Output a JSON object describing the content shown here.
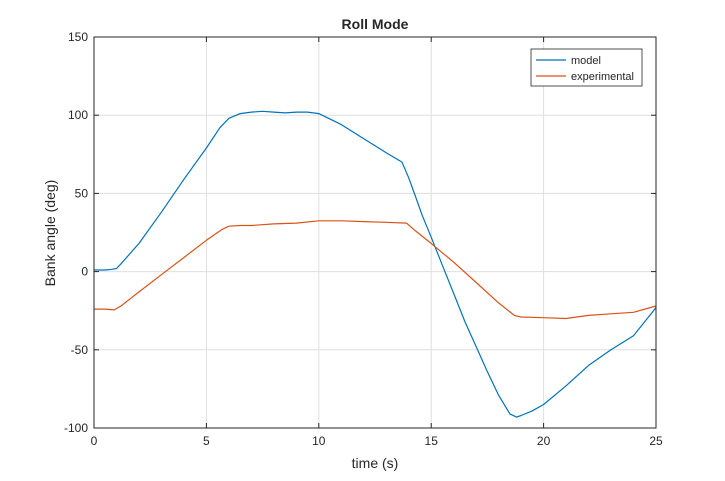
{
  "chart_data": {
    "type": "line",
    "title": "Roll Mode",
    "xlabel": "time (s)",
    "ylabel": "Bank angle (deg)",
    "xlim": [
      0,
      25
    ],
    "ylim": [
      -100,
      150
    ],
    "xticks": [
      0,
      5,
      10,
      15,
      20,
      25
    ],
    "yticks": [
      -100,
      -50,
      0,
      50,
      100,
      150
    ],
    "xtick_labels": [
      "0",
      "5",
      "10",
      "15",
      "20",
      "25"
    ],
    "ytick_labels": [
      "-100",
      "-50",
      "0",
      "50",
      "100",
      "150"
    ],
    "grid": true,
    "legend": "top-right",
    "series": [
      {
        "name": "model",
        "color": "#0072BD",
        "x": [
          0,
          0.5,
          0.8,
          1.0,
          1.2,
          2.0,
          3.0,
          4.0,
          5.0,
          5.6,
          6.0,
          6.5,
          7.0,
          7.5,
          8.0,
          8.5,
          9.0,
          9.5,
          10.0,
          11.0,
          12.0,
          13.0,
          13.7,
          14.0,
          14.3,
          14.6,
          15.0,
          15.5,
          16.0,
          16.5,
          17.0,
          17.5,
          18.0,
          18.5,
          18.8,
          19.0,
          19.5,
          20.0,
          21.0,
          22.0,
          23.0,
          24.0,
          25.0
        ],
        "y": [
          1,
          1,
          1.5,
          2,
          5,
          18,
          38,
          59,
          79,
          92,
          98,
          101,
          102,
          102.5,
          102,
          101.5,
          102,
          102,
          101,
          94,
          85,
          76,
          70,
          60,
          48,
          36,
          22,
          4,
          -14,
          -32,
          -48,
          -64,
          -79,
          -91,
          -93,
          -92,
          -89,
          -85,
          -73,
          -60,
          -50,
          -41,
          -23
        ]
      },
      {
        "name": "experimental",
        "color": "#D95319",
        "x": [
          0,
          0.5,
          0.9,
          1.2,
          2.0,
          3.0,
          4.0,
          5.0,
          5.7,
          6.0,
          6.5,
          7.0,
          8.0,
          9.0,
          10.0,
          11.0,
          12.0,
          13.0,
          13.9,
          14.3,
          15.0,
          15.5,
          16.0,
          17.0,
          18.0,
          18.7,
          19.0,
          20.0,
          21.0,
          22.0,
          23.0,
          24.0,
          25.0
        ],
        "y": [
          -24,
          -24,
          -24.5,
          -22,
          -13,
          -2,
          9,
          20,
          27,
          29,
          29.5,
          29.5,
          30.5,
          31,
          32.5,
          32.5,
          32,
          31.5,
          31,
          26,
          18,
          12,
          6,
          -7,
          -20,
          -28,
          -29,
          -29.5,
          -30,
          -28,
          -27,
          -26,
          -22
        ]
      }
    ]
  }
}
